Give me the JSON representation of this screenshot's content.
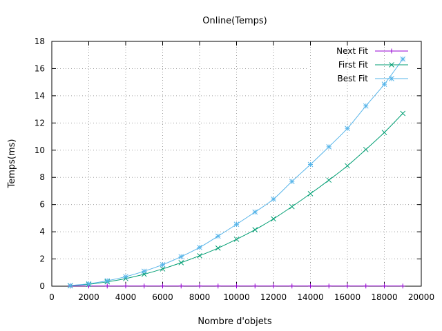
{
  "chart_data": {
    "type": "line",
    "title": "Online(Temps)",
    "xlabel": "Nombre d'objets",
    "ylabel": "Temps(ms)",
    "xlim": [
      0,
      20000
    ],
    "ylim": [
      0,
      18
    ],
    "xticks": [
      0,
      2000,
      4000,
      6000,
      8000,
      10000,
      12000,
      14000,
      16000,
      18000,
      20000
    ],
    "yticks": [
      0,
      2,
      4,
      6,
      8,
      10,
      12,
      14,
      16,
      18
    ],
    "grid": true,
    "legend_position": "top-right",
    "x": [
      1000,
      2000,
      3000,
      4000,
      5000,
      6000,
      7000,
      8000,
      9000,
      10000,
      11000,
      12000,
      13000,
      14000,
      15000,
      16000,
      17000,
      18000,
      19000
    ],
    "series": [
      {
        "name": "Next Fit",
        "color": "#9400d3",
        "marker": "plus",
        "values": [
          0.01,
          0.01,
          0.01,
          0.01,
          0.01,
          0.01,
          0.01,
          0.01,
          0.01,
          0.01,
          0.01,
          0.01,
          0.01,
          0.01,
          0.01,
          0.01,
          0.01,
          0.01,
          0.01
        ]
      },
      {
        "name": "First Fit",
        "color": "#009e73",
        "marker": "cross",
        "values": [
          0.03,
          0.14,
          0.32,
          0.56,
          0.88,
          1.27,
          1.73,
          2.24,
          2.8,
          3.45,
          4.15,
          4.95,
          5.85,
          6.8,
          7.8,
          8.85,
          10.05,
          11.3,
          12.7
        ]
      },
      {
        "name": "Best Fit",
        "color": "#56b4e9",
        "marker": "star",
        "values": [
          0.05,
          0.18,
          0.4,
          0.7,
          1.1,
          1.58,
          2.17,
          2.85,
          3.68,
          4.55,
          5.45,
          6.4,
          7.7,
          8.95,
          10.25,
          11.6,
          13.25,
          14.85,
          16.7
        ]
      }
    ]
  }
}
